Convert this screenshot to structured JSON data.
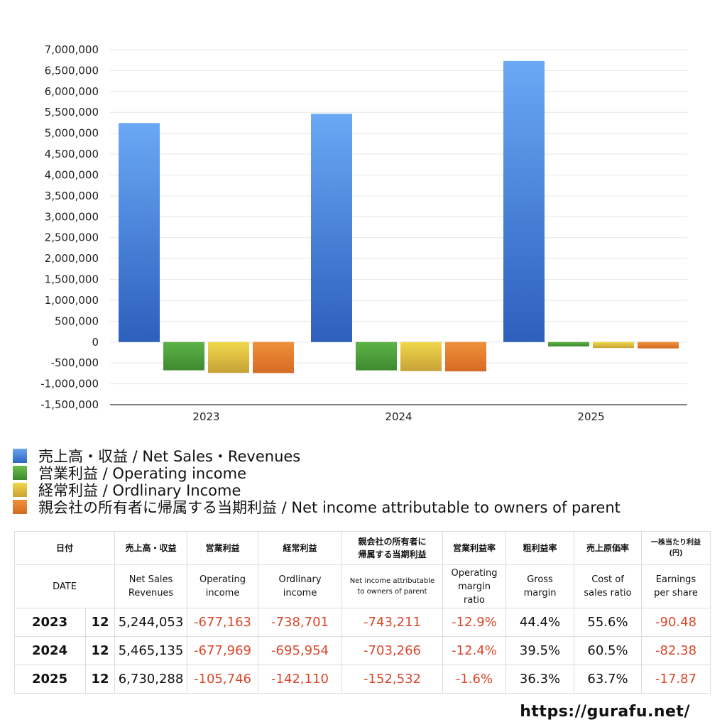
{
  "chart_data": {
    "type": "bar",
    "categories": [
      "2023",
      "2024",
      "2025"
    ],
    "series": [
      {
        "name": "売上高・収益 / Net Sales・Revenues",
        "values": [
          5244053,
          5465135,
          6730288
        ],
        "color": "#3a78d6"
      },
      {
        "name": "営業利益 / Operating income",
        "values": [
          -677163,
          -677969,
          -105746
        ],
        "color": "#4f9a3c"
      },
      {
        "name": "経常利益 / Ordlinary Income",
        "values": [
          -738701,
          -695954,
          -142110
        ],
        "color": "#d9b43a"
      },
      {
        "name": "親会社の所有者に帰属する当期利益 / Net income attributable to owners of parent",
        "values": [
          -743211,
          -703266,
          -152532
        ],
        "color": "#e07a2c"
      }
    ],
    "ylim": [
      -1500000,
      7000000
    ],
    "yticks": [
      "7,000,000",
      "6,500,000",
      "6,000,000",
      "5,500,000",
      "5,000,000",
      "4,500,000",
      "4,000,000",
      "3,500,000",
      "3,000,000",
      "2,500,000",
      "2,000,000",
      "1,500,000",
      "1,000,000",
      "500,000",
      "0",
      "-500,000",
      "-1,000,000",
      "-1,500,000"
    ],
    "grid": true,
    "legend_position": "bottom"
  },
  "table": {
    "header_jp": [
      "日付",
      "売上高・収益",
      "営業利益",
      "経常利益",
      "親会社の所有者に\n帰属する当期利益",
      "営業利益率",
      "粗利益率",
      "売上原価率",
      "一株当たり利益\n(円)"
    ],
    "header_en": [
      "DATE",
      "Net Sales\nRevenues",
      "Operating\nincome",
      "Ordlinary\nincome",
      "Net income attributable\nto owners of parent",
      "Operating\nmargin\nratio",
      "Gross\nmargin",
      "Cost of\nsales ratio",
      "Earnings\nper share"
    ],
    "rows": [
      {
        "year": "2023",
        "month": "12",
        "sales": "5,244,053",
        "op": "-677,163",
        "ord": "-738,701",
        "net": "-743,211",
        "op_margin": "-12.9%",
        "gross": "44.4%",
        "cost": "55.6%",
        "eps": "-90.48"
      },
      {
        "year": "2024",
        "month": "12",
        "sales": "5,465,135",
        "op": "-677,969",
        "ord": "-695,954",
        "net": "-703,266",
        "op_margin": "-12.4%",
        "gross": "39.5%",
        "cost": "60.5%",
        "eps": "-82.38"
      },
      {
        "year": "2025",
        "month": "12",
        "sales": "6,730,288",
        "op": "-105,746",
        "ord": "-142,110",
        "net": "-152,532",
        "op_margin": "-1.6%",
        "gross": "36.3%",
        "cost": "63.7%",
        "eps": "-17.87"
      }
    ]
  },
  "footer": {
    "url": "https://gurafu.net/"
  }
}
